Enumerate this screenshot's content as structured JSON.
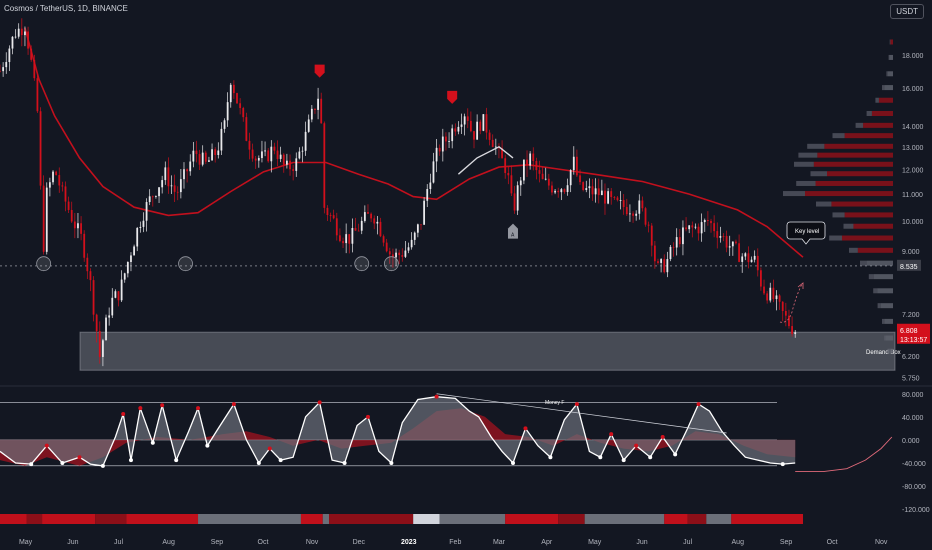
{
  "header": {
    "title": "Cosmos / TetherUS, 1D, BINANCE"
  },
  "currency_badge": "USDT",
  "colors": {
    "background": "#131722",
    "up_candle": "#e9e9ec",
    "down_candle": "#d3101c",
    "moving_average": "#c2101d",
    "white_line": "#d9d9de",
    "demand_box": "#d1d4dc",
    "volume_profile_grey": "#5d606b",
    "volume_profile_red": "#8c1119",
    "oscillator_fill_red": "#a1131f",
    "oscillator_fill_grey": "#6b6f79",
    "last_price_tag": "#d3101c",
    "level_tag": "#3b3e48"
  },
  "annotations": {
    "demand_box_label": "Demand Box",
    "key_level_label": "Key level",
    "money_label": "Money F",
    "marker_label": "A"
  },
  "price_axis": {
    "ticks": [
      "18.000",
      "16.000",
      "14.000",
      "13.000",
      "12.000",
      "11.000",
      "10.000",
      "9.000",
      "7.200",
      "6.200",
      "5.750"
    ],
    "key_level_value": "8.535",
    "last_price": "6.808",
    "countdown": "13:13:57"
  },
  "oscillator_axis": {
    "ticks": [
      "80.000",
      "40.000",
      "0.000",
      "-40.000",
      "-80.000",
      "-120.000"
    ]
  },
  "time_axis": {
    "labels": [
      "May",
      "Jun",
      "Jul",
      "Aug",
      "Sep",
      "Oct",
      "Nov",
      "Dec",
      "2023",
      "Feb",
      "Mar",
      "Apr",
      "May",
      "Jun",
      "Jul",
      "Aug",
      "Sep",
      "Oct",
      "Nov"
    ]
  },
  "chart_data": {
    "type": "candlestick",
    "title": "Cosmos / TetherUS, 1D, BINANCE",
    "price_scale": "log",
    "price_range": [
      5.6,
      20.5
    ],
    "x_range": [
      "2022-04-15",
      "2023-11-10"
    ],
    "price_path": [
      [
        "2022-04-15",
        17.0
      ],
      [
        "2022-04-25",
        19.5
      ],
      [
        "2022-05-01",
        20.0
      ],
      [
        "2022-05-05",
        17.5
      ],
      [
        "2022-05-10",
        14.0
      ],
      [
        "2022-05-12",
        8.3
      ],
      [
        "2022-05-15",
        11.0
      ],
      [
        "2022-05-20",
        12.0
      ],
      [
        "2022-05-25",
        11.0
      ],
      [
        "2022-06-01",
        10.0
      ],
      [
        "2022-06-07",
        9.3
      ],
      [
        "2022-06-12",
        8.0
      ],
      [
        "2022-06-18",
        6.2
      ],
      [
        "2022-06-25",
        7.5
      ],
      [
        "2022-07-01",
        7.8
      ],
      [
        "2022-07-08",
        9.0
      ],
      [
        "2022-07-15",
        10.2
      ],
      [
        "2022-07-22",
        11.0
      ],
      [
        "2022-07-30",
        11.8
      ],
      [
        "2022-08-06",
        11.0
      ],
      [
        "2022-08-12",
        11.8
      ],
      [
        "2022-08-18",
        12.8
      ],
      [
        "2022-08-25",
        12.2
      ],
      [
        "2022-09-01",
        12.8
      ],
      [
        "2022-09-06",
        14.0
      ],
      [
        "2022-09-10",
        16.6
      ],
      [
        "2022-09-15",
        15.0
      ],
      [
        "2022-09-20",
        13.5
      ],
      [
        "2022-09-26",
        12.5
      ],
      [
        "2022-10-02",
        12.5
      ],
      [
        "2022-10-08",
        13.0
      ],
      [
        "2022-10-15",
        12.0
      ],
      [
        "2022-10-22",
        12.3
      ],
      [
        "2022-10-28",
        13.5
      ],
      [
        "2022-11-04",
        15.3
      ],
      [
        "2022-11-06",
        15.8
      ],
      [
        "2022-11-09",
        10.5
      ],
      [
        "2022-11-15",
        10.0
      ],
      [
        "2022-11-20",
        9.5
      ],
      [
        "2022-11-26",
        9.4
      ],
      [
        "2022-12-04",
        10.0
      ],
      [
        "2022-12-10",
        10.3
      ],
      [
        "2022-12-16",
        9.6
      ],
      [
        "2022-12-22",
        8.8
      ],
      [
        "2022-12-28",
        8.9
      ],
      [
        "2023-01-04",
        9.2
      ],
      [
        "2023-01-10",
        10.0
      ],
      [
        "2023-01-16",
        11.8
      ],
      [
        "2023-01-22",
        13.0
      ],
      [
        "2023-01-27",
        13.4
      ],
      [
        "2023-02-02",
        14.2
      ],
      [
        "2023-02-08",
        14.8
      ],
      [
        "2023-02-12",
        13.5
      ],
      [
        "2023-02-18",
        14.3
      ],
      [
        "2023-02-24",
        13.5
      ],
      [
        "2023-03-01",
        12.6
      ],
      [
        "2023-03-06",
        12.0
      ],
      [
        "2023-03-10",
        10.3
      ],
      [
        "2023-03-16",
        12.0
      ],
      [
        "2023-03-21",
        12.5
      ],
      [
        "2023-03-28",
        11.5
      ],
      [
        "2023-04-04",
        11.3
      ],
      [
        "2023-04-12",
        11.3
      ],
      [
        "2023-04-18",
        12.3
      ],
      [
        "2023-04-22",
        11.2
      ],
      [
        "2023-04-29",
        11.1
      ],
      [
        "2023-05-06",
        11.0
      ],
      [
        "2023-05-14",
        10.6
      ],
      [
        "2023-05-22",
        10.5
      ],
      [
        "2023-05-30",
        10.5
      ],
      [
        "2023-06-06",
        9.8
      ],
      [
        "2023-06-10",
        8.4
      ],
      [
        "2023-06-16",
        8.6
      ],
      [
        "2023-06-24",
        9.4
      ],
      [
        "2023-07-01",
        9.7
      ],
      [
        "2023-07-08",
        9.8
      ],
      [
        "2023-07-13",
        10.0
      ],
      [
        "2023-07-20",
        9.6
      ],
      [
        "2023-07-28",
        9.1
      ],
      [
        "2023-08-05",
        8.8
      ],
      [
        "2023-08-12",
        8.7
      ],
      [
        "2023-08-17",
        7.9
      ],
      [
        "2023-08-24",
        7.6
      ],
      [
        "2023-08-30",
        7.2
      ],
      [
        "2023-09-04",
        6.9
      ],
      [
        "2023-09-07",
        6.81
      ]
    ],
    "moving_average": [
      [
        "2022-05-01",
        19.8
      ],
      [
        "2022-05-10",
        16.5
      ],
      [
        "2022-05-20",
        14.5
      ],
      [
        "2022-06-05",
        12.5
      ],
      [
        "2022-06-20",
        11.3
      ],
      [
        "2022-07-10",
        10.5
      ],
      [
        "2022-08-01",
        10.2
      ],
      [
        "2022-08-20",
        10.3
      ],
      [
        "2022-09-10",
        11.1
      ],
      [
        "2022-10-01",
        11.9
      ],
      [
        "2022-10-20",
        12.3
      ],
      [
        "2022-11-10",
        12.3
      ],
      [
        "2022-12-01",
        11.8
      ],
      [
        "2022-12-20",
        11.4
      ],
      [
        "2023-01-05",
        10.9
      ],
      [
        "2023-01-20",
        10.8
      ],
      [
        "2023-02-10",
        11.6
      ],
      [
        "2023-03-01",
        12.1
      ],
      [
        "2023-03-20",
        12.2
      ],
      [
        "2023-04-10",
        12.0
      ],
      [
        "2023-05-01",
        11.8
      ],
      [
        "2023-06-01",
        11.5
      ],
      [
        "2023-07-01",
        11.0
      ],
      [
        "2023-08-01",
        10.4
      ],
      [
        "2023-08-20",
        9.8
      ],
      [
        "2023-09-12",
        8.8
      ]
    ],
    "white_trend_segment": [
      [
        "2023-02-03",
        11.8
      ],
      [
        "2023-02-15",
        12.5
      ],
      [
        "2023-03-01",
        13.0
      ],
      [
        "2023-03-10",
        12.5
      ]
    ],
    "key_level": 8.535,
    "demand_box": {
      "from": "2022-06-01",
      "to": "2023-11-10",
      "low": 5.9,
      "high": 6.75
    },
    "support_circles": [
      [
        "2022-05-13",
        8.6
      ],
      [
        "2022-08-12",
        8.6
      ],
      [
        "2022-12-03",
        8.6
      ],
      [
        "2022-12-22",
        8.6
      ]
    ],
    "sell_markers": [
      [
        "2022-11-06",
        16.9
      ],
      [
        "2023-01-30",
        15.4
      ]
    ],
    "oscillator": {
      "range": [
        -125,
        90
      ],
      "upper_band": 65,
      "lower_band": -45,
      "zero_line": 0,
      "wave": [
        [
          "2022-04-15",
          -20
        ],
        [
          "2022-04-25",
          -40
        ],
        [
          "2022-05-05",
          -42
        ],
        [
          "2022-05-15",
          -10
        ],
        [
          "2022-05-25",
          -40
        ],
        [
          "2022-06-05",
          -30
        ],
        [
          "2022-06-12",
          -42
        ],
        [
          "2022-06-20",
          -45
        ],
        [
          "2022-06-28",
          5
        ],
        [
          "2022-07-03",
          45
        ],
        [
          "2022-07-08",
          -35
        ],
        [
          "2022-07-14",
          55
        ],
        [
          "2022-07-22",
          -5
        ],
        [
          "2022-07-28",
          60
        ],
        [
          "2022-08-06",
          -35
        ],
        [
          "2022-08-14",
          15
        ],
        [
          "2022-08-20",
          55
        ],
        [
          "2022-08-26",
          -10
        ],
        [
          "2022-09-02",
          20
        ],
        [
          "2022-09-12",
          62
        ],
        [
          "2022-09-20",
          0
        ],
        [
          "2022-09-28",
          -40
        ],
        [
          "2022-10-05",
          -15
        ],
        [
          "2022-10-12",
          -35
        ],
        [
          "2022-10-20",
          -30
        ],
        [
          "2022-10-28",
          40
        ],
        [
          "2022-11-06",
          65
        ],
        [
          "2022-11-14",
          -35
        ],
        [
          "2022-11-22",
          -40
        ],
        [
          "2022-11-30",
          25
        ],
        [
          "2022-12-07",
          40
        ],
        [
          "2022-12-14",
          -20
        ],
        [
          "2022-12-22",
          -40
        ],
        [
          "2022-12-29",
          30
        ],
        [
          "2023-01-08",
          70
        ],
        [
          "2023-01-20",
          75
        ],
        [
          "2023-02-01",
          72
        ],
        [
          "2023-02-10",
          50
        ],
        [
          "2023-02-16",
          40
        ],
        [
          "2023-02-24",
          5
        ],
        [
          "2023-03-03",
          -20
        ],
        [
          "2023-03-10",
          -40
        ],
        [
          "2023-03-18",
          20
        ],
        [
          "2023-03-26",
          -10
        ],
        [
          "2023-04-03",
          -30
        ],
        [
          "2023-04-12",
          35
        ],
        [
          "2023-04-20",
          62
        ],
        [
          "2023-04-28",
          -20
        ],
        [
          "2023-05-05",
          -30
        ],
        [
          "2023-05-12",
          10
        ],
        [
          "2023-05-20",
          -35
        ],
        [
          "2023-05-28",
          -10
        ],
        [
          "2023-06-06",
          -30
        ],
        [
          "2023-06-14",
          5
        ],
        [
          "2023-06-22",
          -25
        ],
        [
          "2023-06-30",
          20
        ],
        [
          "2023-07-07",
          62
        ],
        [
          "2023-07-14",
          50
        ],
        [
          "2023-07-22",
          15
        ],
        [
          "2023-07-30",
          -10
        ],
        [
          "2023-08-06",
          -30
        ],
        [
          "2023-08-14",
          -35
        ],
        [
          "2023-08-22",
          -40
        ],
        [
          "2023-08-30",
          -42
        ],
        [
          "2023-09-07",
          -40
        ]
      ],
      "money_flow": [
        [
          "2022-04-15",
          -35
        ],
        [
          "2022-05-01",
          -45
        ],
        [
          "2022-05-15",
          -30
        ],
        [
          "2022-06-05",
          -45
        ],
        [
          "2022-06-20",
          -30
        ],
        [
          "2022-07-05",
          -5
        ],
        [
          "2022-07-25",
          5
        ],
        [
          "2022-08-15",
          0
        ],
        [
          "2022-09-05",
          10
        ],
        [
          "2022-09-20",
          15
        ],
        [
          "2022-10-05",
          5
        ],
        [
          "2022-10-20",
          -10
        ],
        [
          "2022-11-05",
          0
        ],
        [
          "2022-11-20",
          -15
        ],
        [
          "2022-12-05",
          -10
        ],
        [
          "2022-12-22",
          -5
        ],
        [
          "2023-01-05",
          20
        ],
        [
          "2023-01-20",
          50
        ],
        [
          "2023-02-05",
          55
        ],
        [
          "2023-02-20",
          40
        ],
        [
          "2023-03-05",
          10
        ],
        [
          "2023-03-20",
          5
        ],
        [
          "2023-04-05",
          -10
        ],
        [
          "2023-04-20",
          10
        ],
        [
          "2023-05-05",
          -5
        ],
        [
          "2023-05-20",
          -15
        ],
        [
          "2023-06-05",
          -20
        ],
        [
          "2023-06-20",
          -10
        ],
        [
          "2023-07-05",
          15
        ],
        [
          "2023-07-20",
          10
        ],
        [
          "2023-08-05",
          -10
        ],
        [
          "2023-08-20",
          -25
        ],
        [
          "2023-09-07",
          -30
        ]
      ],
      "projection": [
        [
          "2023-09-07",
          -55
        ],
        [
          "2023-09-25",
          -55
        ],
        [
          "2023-10-10",
          -50
        ],
        [
          "2023-10-22",
          -35
        ],
        [
          "2023-11-01",
          -15
        ],
        [
          "2023-11-08",
          5
        ]
      ],
      "divergence_line": [
        [
          "2023-01-20",
          80
        ],
        [
          "2023-07-25",
          12
        ]
      ]
    },
    "regime_bar": [
      [
        "2022-04-15",
        "red"
      ],
      [
        "2022-05-02",
        "dark"
      ],
      [
        "2022-05-12",
        "red"
      ],
      [
        "2022-06-15",
        "dark"
      ],
      [
        "2022-07-05",
        "red"
      ],
      [
        "2022-08-20",
        "grey"
      ],
      [
        "2022-10-25",
        "red"
      ],
      [
        "2022-11-08",
        "grey"
      ],
      [
        "2022-11-12",
        "dark"
      ],
      [
        "2023-01-05",
        "light"
      ],
      [
        "2023-01-22",
        "grey"
      ],
      [
        "2023-03-05",
        "red"
      ],
      [
        "2023-04-08",
        "dark"
      ],
      [
        "2023-04-25",
        "grey"
      ],
      [
        "2023-06-15",
        "red"
      ],
      [
        "2023-06-30",
        "dark"
      ],
      [
        "2023-07-12",
        "grey"
      ],
      [
        "2023-07-28",
        "red"
      ],
      [
        "2023-09-12",
        "none"
      ]
    ],
    "volume_profile": [
      [
        18.8,
        0.03,
        "red"
      ],
      [
        17.8,
        0.04,
        "grey"
      ],
      [
        16.8,
        0.06,
        "grey"
      ],
      [
        16.0,
        0.1,
        "grey"
      ],
      [
        15.3,
        0.16,
        "red"
      ],
      [
        14.6,
        0.24,
        "red"
      ],
      [
        14.0,
        0.34,
        "red"
      ],
      [
        13.5,
        0.55,
        "red"
      ],
      [
        13.0,
        0.78,
        "red"
      ],
      [
        12.6,
        0.86,
        "red"
      ],
      [
        12.2,
        0.9,
        "red"
      ],
      [
        11.8,
        0.75,
        "red"
      ],
      [
        11.4,
        0.88,
        "red"
      ],
      [
        11.0,
        1.0,
        "red"
      ],
      [
        10.6,
        0.7,
        "red"
      ],
      [
        10.2,
        0.55,
        "red"
      ],
      [
        9.8,
        0.45,
        "red"
      ],
      [
        9.4,
        0.58,
        "red"
      ],
      [
        9.0,
        0.4,
        "red"
      ],
      [
        8.6,
        0.3,
        "grey"
      ],
      [
        8.2,
        0.22,
        "grey"
      ],
      [
        7.8,
        0.18,
        "grey"
      ],
      [
        7.4,
        0.14,
        "grey"
      ],
      [
        7.0,
        0.1,
        "grey"
      ],
      [
        6.6,
        0.08,
        "grey"
      ],
      [
        6.3,
        0.05,
        "grey"
      ]
    ]
  }
}
